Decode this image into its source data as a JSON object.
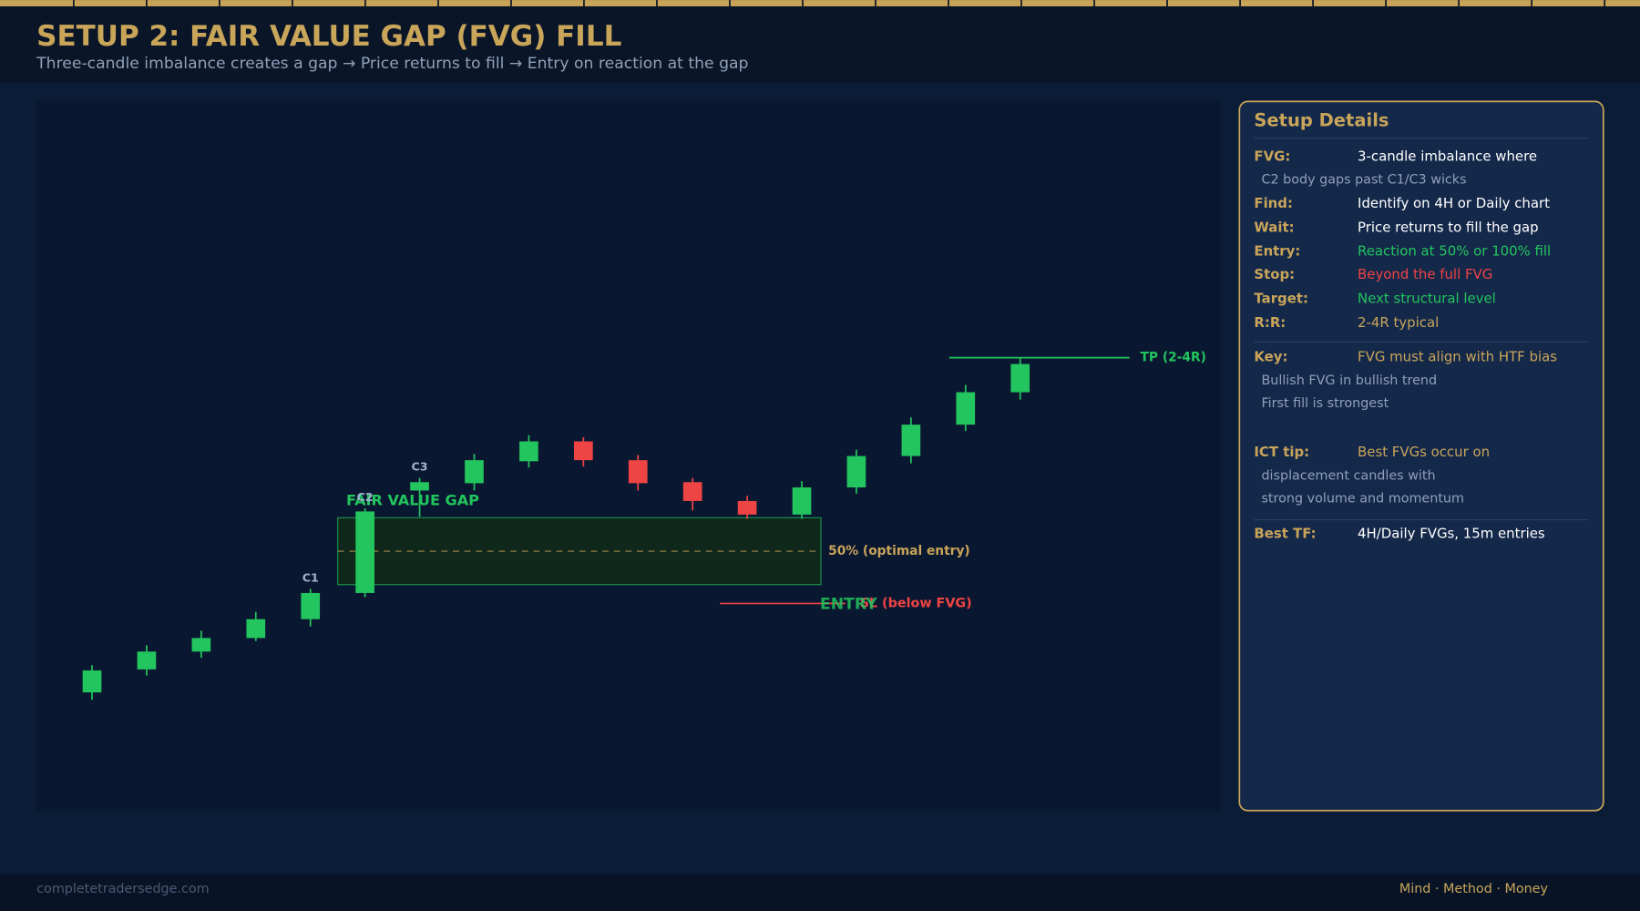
{
  "header": {
    "title": "SETUP 2: FAIR VALUE GAP (FVG) FILL",
    "subtitle": "Three-candle imbalance creates a gap → Price returns to fill → Entry on reaction at the gap"
  },
  "chart_data": {
    "type": "candlestick",
    "open": [
      113,
      135,
      152,
      165,
      183,
      208,
      306,
      313,
      334,
      353,
      335,
      314,
      296,
      283,
      309,
      339,
      369,
      400
    ],
    "high": [
      139,
      158,
      172,
      190,
      212,
      289,
      318,
      341,
      359,
      357,
      340,
      318,
      301,
      315,
      345,
      376,
      407,
      433
    ],
    "low": [
      106,
      129,
      146,
      162,
      176,
      204,
      281,
      306,
      328,
      329,
      306,
      287,
      279,
      279,
      303,
      332,
      363,
      393
    ],
    "close": [
      134,
      152,
      165,
      183,
      208,
      286,
      314,
      335,
      353,
      335,
      313,
      296,
      283,
      309,
      339,
      369,
      400,
      427
    ],
    "up_color": "#22c55e",
    "down_color": "#ef4444",
    "ylim": [
      0,
      678
    ],
    "candle_labels": [
      {
        "index": 4,
        "text": "C1"
      },
      {
        "index": 5,
        "text": "C2"
      },
      {
        "index": 6,
        "text": "C3"
      }
    ],
    "zone": {
      "label": "FAIR VALUE GAP",
      "low": 216,
      "high": 280
    },
    "midline": {
      "label": "50% (optimal entry)",
      "value": 248
    },
    "take_profit": {
      "label": "TP (2-4R)",
      "value": 433
    },
    "stop": {
      "label": "SL (below FVG)",
      "value": 198
    },
    "entry_label": "ENTRY"
  },
  "details": {
    "title": "Setup Details",
    "sections": [
      [
        {
          "label": "FVG:",
          "value": "3-candle imbalance where",
          "color": "#ffffff"
        },
        {
          "note": "C2 body gaps past C1/C3 wicks"
        },
        {
          "label": "Find:",
          "value": "Identify on 4H or Daily chart",
          "color": "#ffffff"
        },
        {
          "label": "Wait:",
          "value": "Price returns to fill the gap",
          "color": "#ffffff"
        },
        {
          "label": "Entry:",
          "value": "Reaction at 50% or 100% fill",
          "color": "#22c55e"
        },
        {
          "label": "Stop:",
          "value": "Beyond the full FVG",
          "color": "#ef4444"
        },
        {
          "label": "Target:",
          "value": "Next structural level",
          "color": "#22c55e"
        },
        {
          "label": "R:R:",
          "value": "2-4R typical",
          "color": "#c9a55a"
        }
      ],
      [
        {
          "label": "Key:",
          "value": "FVG must align with HTF bias",
          "color": "#c9a55a"
        },
        {
          "note": "Bullish FVG in bullish trend"
        },
        {
          "note": "First fill is strongest"
        },
        {
          "label": "ICT tip:",
          "value": "Best FVGs occur on",
          "color": "#c9a55a"
        },
        {
          "note": "displacement candles with"
        },
        {
          "note": "strong volume and momentum"
        }
      ],
      [
        {
          "label": "Best TF:",
          "value": "4H/Daily FVGs, 15m entries",
          "color": "#ffffff"
        }
      ]
    ]
  },
  "footer": {
    "site": "completetradersedge.com",
    "tagline": "Mind · Method · Money"
  }
}
